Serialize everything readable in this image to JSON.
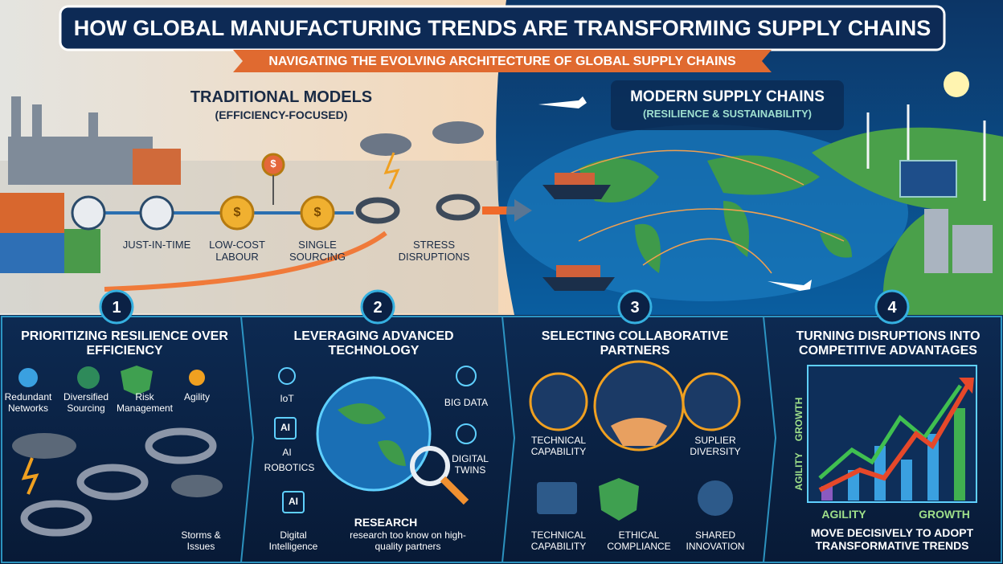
{
  "header": {
    "title": "HOW GLOBAL MANUFACTURING TRENDS ARE TRANSFORMING SUPPLY CHAINS",
    "subtitle": "NAVIGATING THE EVOLVING ARCHITECTURE OF GLOBAL SUPPLY CHAINS"
  },
  "traditional": {
    "title": "TRADITIONAL MODELS",
    "subtitle": "(EFFICIENCY-FOCUSED)",
    "coin": "$",
    "steps": [
      "JUST-IN-TIME",
      "LOW-COST LABOUR",
      "SINGLE SOURCING",
      "STRESS DISRUPTIONS"
    ]
  },
  "modern": {
    "title": "MODERN SUPPLY CHAINS",
    "subtitle": "(RESILIENCE & SUSTAINABILITY)"
  },
  "panels": [
    {
      "number": "1",
      "title": "PRIORITIZING RESILIENCE OVER EFFICIENCY",
      "items": [
        "Redundant Networks",
        "Diversified Sourcing",
        "Risk Management",
        "Agility",
        "Storms & Issues"
      ]
    },
    {
      "number": "2",
      "title": "LEVERAGING ADVANCED TECHNOLOGY",
      "items": [
        "IoT",
        "AI",
        "ROBOTICS",
        "Digital Intelligence",
        "BIG DATA",
        "DIGITAL TWINS",
        "RESEARCH",
        "research too know on high-quality partners"
      ],
      "badge": "AI"
    },
    {
      "number": "3",
      "title": "SELECTING COLLABORATIVE PARTNERS",
      "items": [
        "TECHNICAL CAPABILITY",
        "SUPLIER DIVERSITY",
        "TECHNICAL CAPABILITY",
        "ETHICAL COMPLIANCE",
        "SHARED INNOVATION"
      ]
    },
    {
      "number": "4",
      "title": "TURNING DISRUPTIONS INTO COMPETITIVE ADVANTAGES",
      "axis_y": [
        "GROWTH",
        "AGILITY"
      ],
      "axis_x": [
        "AGILITY",
        "GROWTH"
      ],
      "footer": "MOVE DECISIVELY TO ADOPT TRANSFORMATIVE TRENDS"
    }
  ]
}
